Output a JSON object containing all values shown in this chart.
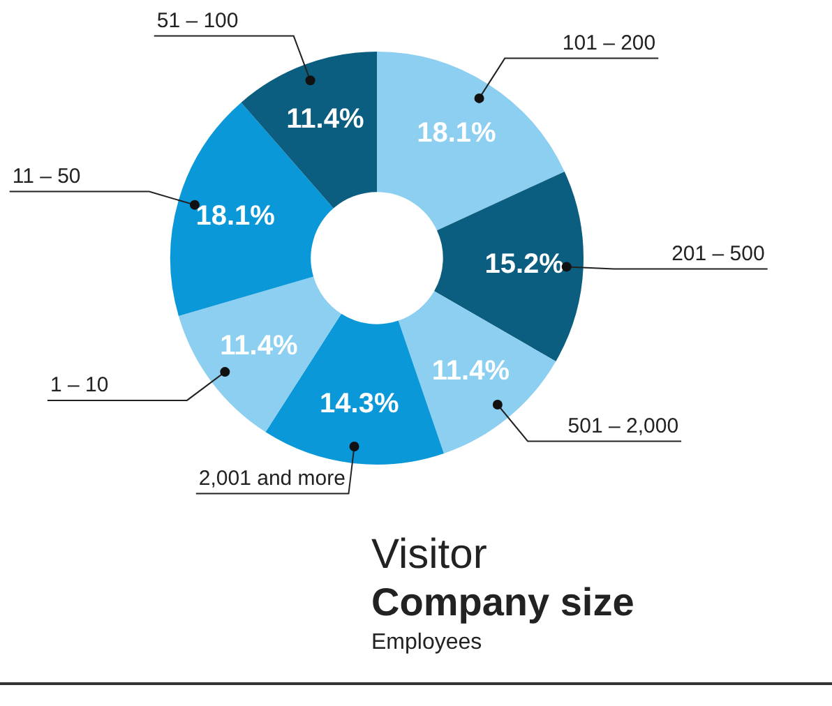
{
  "chart_data": {
    "type": "donut",
    "title": "Visitor",
    "subtitle": "Company size",
    "annotations": [
      "Employees"
    ],
    "categories": [
      "101 – 200",
      "201 – 500",
      "501 – 2,000",
      "2,001 and more",
      "1 – 10",
      "11 – 50",
      "51 – 100"
    ],
    "values": [
      18.1,
      15.2,
      11.4,
      14.3,
      11.4,
      18.1,
      11.4
    ],
    "value_labels": [
      "18.1%",
      "15.2%",
      "11.4%",
      "14.3%",
      "11.4%",
      "18.1%",
      "11.4%"
    ],
    "colors": [
      "#8dcff0",
      "#0b5e80",
      "#8dcff0",
      "#0b98d8",
      "#8dcff0",
      "#0b98d8",
      "#0b5e80"
    ],
    "legend": false
  }
}
